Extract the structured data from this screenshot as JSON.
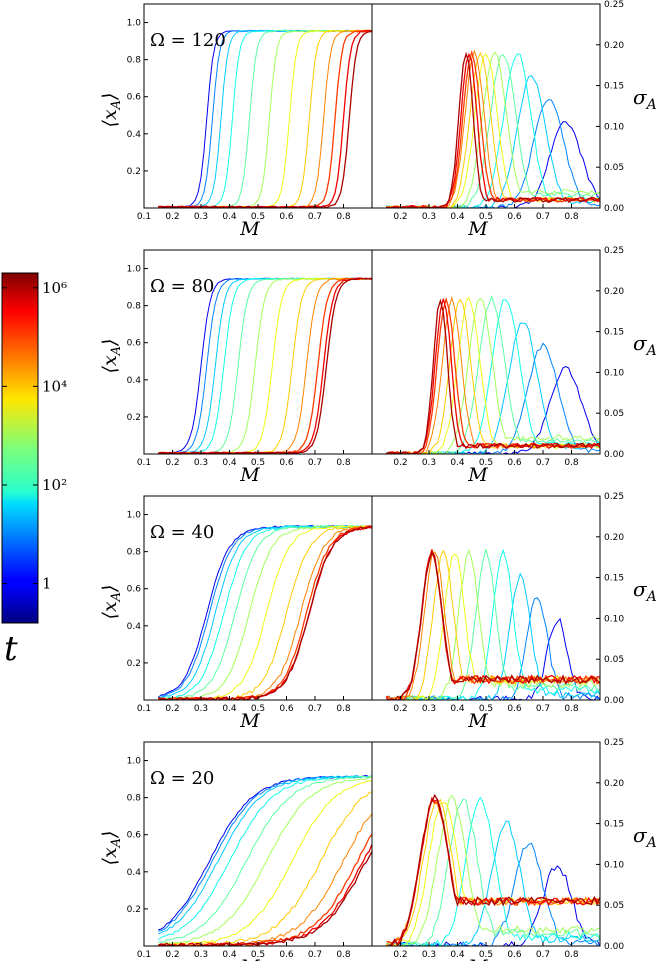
{
  "chart_data": {
    "type": "line",
    "x_label": "M",
    "x_ticks": [
      "0.1",
      "0.2",
      "0.3",
      "0.4",
      "0.5",
      "0.6",
      "0.7",
      "0.8"
    ],
    "xlim": [
      0.1,
      0.9
    ],
    "left_ylabel": "⟨x_A⟩",
    "left_ylim": [
      0,
      1.1
    ],
    "left_ticks": [
      "0.2",
      "0.4",
      "0.6",
      "0.8",
      "1.0"
    ],
    "right_ylabel": "σ_A",
    "right_ylim": [
      0,
      0.25
    ],
    "right_ticks": [
      "0.00",
      "0.05",
      "0.10",
      "0.15",
      "0.20",
      "0.25"
    ],
    "colorbar": {
      "label": "t",
      "scale": "log",
      "ticks": [
        "1",
        "10²",
        "10⁴",
        "10⁶"
      ],
      "tick_exponents": [
        0,
        2,
        4,
        6
      ],
      "range_exponents": [
        -0.8,
        6.3
      ]
    },
    "series_log10_t": [
      0.0,
      1.0,
      1.5,
      2.0,
      2.5,
      3.0,
      3.5,
      4.0,
      4.5,
      5.0,
      5.5,
      6.0
    ],
    "panels": [
      {
        "omega_label": "Ω = 120",
        "mean_xA": {
          "x0": [
            0.32,
            0.34,
            0.37,
            0.41,
            0.47,
            0.54,
            0.61,
            0.68,
            0.73,
            0.77,
            0.8,
            0.82
          ],
          "plateau": 0.95,
          "slope": 80
        },
        "sigma_A": {
          "center": [
            0.78,
            0.72,
            0.66,
            0.61,
            0.56,
            0.53,
            0.5,
            0.48,
            0.46,
            0.45,
            0.44,
            0.43
          ],
          "peak": 0.19,
          "baseline": 0.01
        }
      },
      {
        "omega_label": "Ω = 80",
        "mean_xA": {
          "x0": [
            0.3,
            0.32,
            0.35,
            0.38,
            0.43,
            0.49,
            0.55,
            0.62,
            0.67,
            0.71,
            0.73,
            0.74
          ],
          "plateau": 0.94,
          "slope": 60
        },
        "sigma_A": {
          "center": [
            0.78,
            0.7,
            0.63,
            0.57,
            0.52,
            0.48,
            0.44,
            0.41,
            0.38,
            0.36,
            0.35,
            0.34
          ],
          "peak": 0.19,
          "baseline": 0.01
        }
      },
      {
        "omega_label": "Ω = 40",
        "mean_xA": {
          "x0": [
            0.32,
            0.33,
            0.35,
            0.38,
            0.42,
            0.47,
            0.53,
            0.6,
            0.65,
            0.67,
            0.68,
            0.68
          ],
          "plateau": 0.93,
          "slope": 25
        },
        "sigma_A": {
          "center": [
            0.75,
            0.68,
            0.62,
            0.56,
            0.5,
            0.44,
            0.39,
            0.35,
            0.32,
            0.31,
            0.31,
            0.31
          ],
          "peak": 0.18,
          "baseline": 0.025
        }
      },
      {
        "omega_label": "Ω = 20",
        "mean_xA": {
          "x0": [
            0.33,
            0.34,
            0.36,
            0.4,
            0.46,
            0.53,
            0.62,
            0.72,
            0.8,
            0.85,
            0.87,
            0.88
          ],
          "plateau": 0.91,
          "slope": 13
        },
        "sigma_A": {
          "center": [
            0.75,
            0.65,
            0.57,
            0.48,
            0.42,
            0.38,
            0.35,
            0.33,
            0.32,
            0.32,
            0.32,
            0.32
          ],
          "peak": 0.18,
          "baseline": 0.055
        }
      }
    ]
  }
}
